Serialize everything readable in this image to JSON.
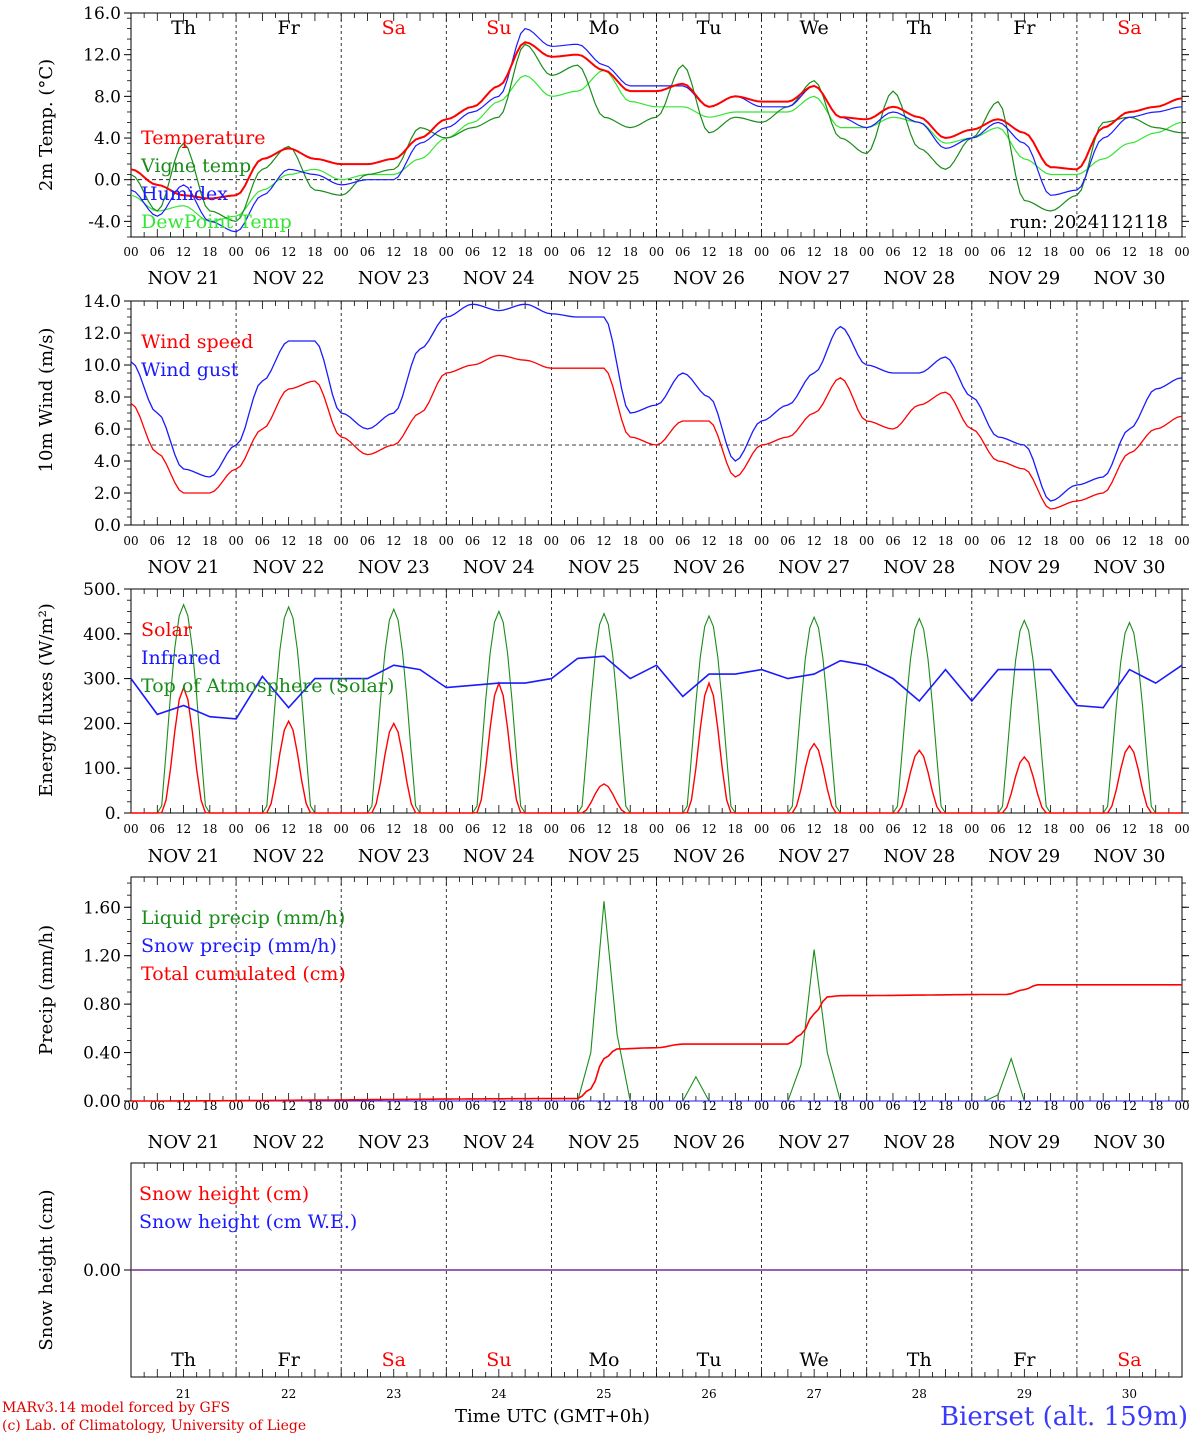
{
  "run_label": "run: 2024112118",
  "day_names": [
    "Th",
    "Fr",
    "Sa",
    "Su",
    "Mo",
    "Tu",
    "We",
    "Th",
    "Fr",
    "Sa"
  ],
  "weekend_flags": [
    false,
    false,
    true,
    true,
    false,
    false,
    false,
    false,
    false,
    true
  ],
  "date_labels": [
    "NOV 21",
    "NOV 22",
    "NOV 23",
    "NOV 24",
    "NOV 25",
    "NOV 26",
    "NOV 27",
    "NOV 28",
    "NOV 29",
    "NOV 30"
  ],
  "hour_ticks": [
    "00",
    "06",
    "12",
    "18"
  ],
  "final_hour_tick": "00",
  "bottom_day_numbers": [
    "21",
    "22",
    "23",
    "24",
    "25",
    "26",
    "27",
    "28",
    "29",
    "30"
  ],
  "footer": {
    "model_line": "MARv3.14 model forced by GFS",
    "credit_line": "(c) Lab. of Climatology, University of Liege",
    "x_axis_label": "Time UTC (GMT+0h)",
    "station": "Bierset (alt. 159m)"
  },
  "colors": {
    "red": "#ff0000",
    "green": "#1a8c1a",
    "blue": "#1a1aff",
    "lightgreen": "#33e633",
    "purple": "#7a2a9a"
  },
  "chart_data": [
    {
      "type": "line",
      "ylabel": "2m Temp. (°C)",
      "ylim": [
        -5.5,
        16
      ],
      "yticks": [
        "-4.0",
        "0.0",
        "4.0",
        "8.0",
        "12.0",
        "16.0"
      ],
      "ytick_values": [
        -4,
        0,
        4,
        8,
        12,
        16
      ],
      "reference_line": 0,
      "x_hours_from_nov21_00": [
        0,
        6,
        12,
        18,
        24,
        30,
        36,
        42,
        48,
        54,
        60,
        66,
        72,
        78,
        84,
        90,
        96,
        102,
        108,
        114,
        120,
        126,
        132,
        138,
        144,
        150,
        156,
        162,
        168,
        174,
        180,
        186,
        192,
        198,
        204,
        210,
        216,
        222,
        228,
        234,
        240
      ],
      "series": [
        {
          "name": "Temperature",
          "color": "red",
          "values": [
            1.0,
            -0.5,
            -1.5,
            -1.8,
            -1.5,
            2.0,
            3.0,
            2.0,
            1.5,
            1.5,
            2.0,
            4.0,
            5.8,
            7.0,
            9.0,
            13.2,
            11.8,
            12.0,
            10.5,
            8.5,
            8.5,
            9.2,
            7.0,
            8.0,
            7.5,
            7.5,
            9.0,
            6.0,
            5.8,
            7.0,
            6.0,
            4.0,
            4.8,
            5.8,
            4.5,
            1.2,
            1.0,
            5.0,
            6.5,
            7.0,
            7.8
          ]
        },
        {
          "name": "Vigne temp",
          "color": "green",
          "values": [
            0.5,
            -3.0,
            3.5,
            -3.0,
            -4.0,
            1.0,
            3.2,
            -1.0,
            -1.5,
            0.5,
            1.0,
            5.0,
            4.0,
            5.0,
            6.0,
            13.0,
            10.0,
            11.0,
            6.0,
            5.0,
            6.0,
            11.0,
            4.5,
            6.0,
            5.5,
            7.0,
            9.5,
            4.0,
            2.5,
            8.5,
            3.0,
            1.0,
            4.0,
            7.5,
            -2.0,
            -3.0,
            -1.5,
            5.5,
            6.0,
            5.0,
            4.5
          ]
        },
        {
          "name": "Humidex",
          "color": "blue",
          "values": [
            -1.0,
            -3.5,
            -0.5,
            -4.0,
            -5.0,
            -1.5,
            1.0,
            0.5,
            -0.5,
            0.0,
            0.0,
            3.5,
            5.0,
            6.5,
            8.0,
            14.5,
            12.8,
            13.0,
            11.0,
            9.0,
            9.0,
            9.0,
            7.0,
            8.0,
            7.0,
            7.0,
            9.0,
            6.0,
            5.0,
            6.5,
            5.5,
            3.0,
            4.0,
            5.5,
            3.5,
            -1.5,
            -1.0,
            4.0,
            6.0,
            6.5,
            7.0
          ]
        },
        {
          "name": "DewPoint Temp",
          "color": "lightgreen",
          "values": [
            -1.5,
            -3.0,
            -2.5,
            -4.0,
            -3.5,
            -1.0,
            0.5,
            1.0,
            0.0,
            0.5,
            0.5,
            2.0,
            4.0,
            5.5,
            7.5,
            10.0,
            8.0,
            8.5,
            10.5,
            7.5,
            7.0,
            7.0,
            6.0,
            6.5,
            6.5,
            6.5,
            8.0,
            5.0,
            5.0,
            6.0,
            5.5,
            3.5,
            4.0,
            5.0,
            2.0,
            0.5,
            0.5,
            2.0,
            3.5,
            4.5,
            5.5
          ]
        }
      ]
    },
    {
      "type": "line",
      "ylabel": "10m Wind (m/s)",
      "ylim": [
        0,
        14
      ],
      "yticks": [
        "0.0",
        "2.0",
        "4.0",
        "6.0",
        "8.0",
        "10.0",
        "12.0",
        "14.0"
      ],
      "ytick_values": [
        0,
        2,
        4,
        6,
        8,
        10,
        12,
        14
      ],
      "reference_line": 5,
      "x_hours_from_nov21_00": [
        0,
        6,
        12,
        18,
        24,
        30,
        36,
        42,
        48,
        54,
        60,
        66,
        72,
        78,
        84,
        90,
        96,
        102,
        108,
        114,
        120,
        126,
        132,
        138,
        144,
        150,
        156,
        162,
        168,
        174,
        180,
        186,
        192,
        198,
        204,
        210,
        216,
        222,
        228,
        234,
        240
      ],
      "series": [
        {
          "name": "Wind speed",
          "color": "red",
          "values": [
            7.6,
            4.5,
            2.0,
            2.0,
            3.5,
            6.0,
            8.5,
            9.0,
            5.5,
            4.4,
            5.0,
            7.0,
            9.5,
            10.0,
            10.6,
            10.3,
            9.8,
            9.8,
            9.8,
            5.5,
            5.0,
            6.5,
            6.5,
            3.0,
            5.0,
            5.5,
            7.0,
            9.2,
            6.5,
            6.0,
            7.5,
            8.3,
            6.0,
            4.0,
            3.5,
            1.0,
            1.5,
            2.0,
            4.5,
            6.0,
            6.8
          ]
        },
        {
          "name": "Wind gust",
          "color": "blue",
          "values": [
            10.2,
            7.0,
            3.5,
            3.0,
            5.0,
            9.0,
            11.5,
            11.5,
            7.0,
            6.0,
            7.0,
            11.0,
            13.0,
            13.8,
            13.4,
            13.8,
            13.2,
            13.0,
            13.0,
            7.0,
            7.5,
            9.5,
            8.0,
            4.0,
            6.5,
            7.5,
            9.5,
            12.4,
            10.0,
            9.5,
            9.5,
            10.5,
            8.0,
            5.5,
            5.0,
            1.5,
            2.5,
            3.0,
            6.0,
            8.5,
            9.2
          ]
        }
      ]
    },
    {
      "type": "line",
      "ylabel": "Energy fluxes (W/m²)",
      "ylim": [
        0,
        500
      ],
      "yticks": [
        "0.",
        "100.",
        "200.",
        "300.",
        "400.",
        "500."
      ],
      "ytick_values": [
        0,
        100,
        200,
        300,
        400,
        500
      ],
      "solar_noon_hours": [
        12,
        36,
        60,
        84,
        108,
        132,
        156,
        180,
        204,
        228
      ],
      "toa_peaks": [
        465,
        460,
        455,
        450,
        445,
        440,
        437,
        434,
        430,
        425
      ],
      "solar_peaks": [
        280,
        205,
        200,
        290,
        65,
        290,
        155,
        140,
        125,
        150
      ],
      "infrared_x_hours": [
        0,
        6,
        12,
        18,
        24,
        30,
        36,
        42,
        48,
        54,
        60,
        66,
        72,
        78,
        84,
        90,
        96,
        102,
        108,
        114,
        120,
        126,
        132,
        138,
        144,
        150,
        156,
        162,
        168,
        174,
        180,
        186,
        192,
        198,
        204,
        210,
        216,
        222,
        228,
        234,
        240
      ],
      "infrared_values": [
        300,
        220,
        240,
        215,
        210,
        305,
        235,
        300,
        300,
        300,
        330,
        320,
        280,
        285,
        290,
        290,
        300,
        345,
        350,
        300,
        330,
        260,
        310,
        310,
        320,
        300,
        310,
        340,
        330,
        300,
        250,
        320,
        250,
        320,
        320,
        320,
        240,
        235,
        320,
        290,
        330
      ],
      "series": [
        {
          "name": "Solar",
          "color": "red"
        },
        {
          "name": "Infrared",
          "color": "blue"
        },
        {
          "name": "Top of Atmosphere (Solar)",
          "color": "green"
        }
      ]
    },
    {
      "type": "line",
      "ylabel": "Precip (mm/h)",
      "ylim": [
        0,
        1.85
      ],
      "yticks": [
        "0.00",
        "0.40",
        "0.80",
        "1.20",
        "1.60"
      ],
      "ytick_values": [
        0,
        0.4,
        0.8,
        1.2,
        1.6
      ],
      "liquid_x_hours": [
        0,
        102,
        105,
        108,
        111,
        114,
        120,
        126,
        129,
        132,
        150,
        153,
        156,
        159,
        162,
        195,
        198,
        201,
        204,
        240
      ],
      "liquid_values": [
        0,
        0,
        0.4,
        1.65,
        0.55,
        0,
        0,
        0,
        0.2,
        0,
        0,
        0.3,
        1.25,
        0.4,
        0,
        0,
        0.05,
        0.35,
        0,
        0
      ],
      "total_x_hours": [
        0,
        102,
        105,
        108,
        111,
        120,
        126,
        150,
        153,
        156,
        159,
        162,
        200,
        204,
        207,
        240
      ],
      "total_values": [
        0,
        0.02,
        0.1,
        0.35,
        0.43,
        0.44,
        0.47,
        0.47,
        0.55,
        0.72,
        0.86,
        0.87,
        0.88,
        0.92,
        0.96,
        0.96
      ],
      "series": [
        {
          "name": "Liquid precip (mm/h)",
          "color": "green"
        },
        {
          "name": "Snow precip (mm/h)",
          "color": "blue"
        },
        {
          "name": "Total cumulated (cm)",
          "color": "red"
        }
      ]
    },
    {
      "type": "line",
      "ylabel": "Snow height (cm)",
      "yticks": [
        "0.00"
      ],
      "ytick_values": [
        0
      ],
      "values": [
        0,
        0
      ],
      "series": [
        {
          "name": "Snow height (cm)",
          "color": "red"
        },
        {
          "name": "Snow height (cm W.E.)",
          "color": "blue"
        }
      ]
    }
  ]
}
